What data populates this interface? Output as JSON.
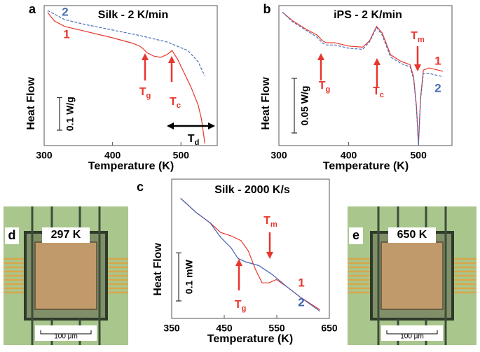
{
  "chart_data": [
    {
      "type": "line",
      "panel": "a",
      "title": "Silk - 2 K/min",
      "xlabel": "Temperature (K)",
      "ylabel": "Heat Flow",
      "xlim": [
        300,
        553
      ],
      "xticks": [
        300,
        400,
        500
      ],
      "ylim": [
        0,
        0.43
      ],
      "scale_bar": {
        "value": 0.1,
        "label": "0.1 W/g"
      },
      "series": [
        {
          "name": "1",
          "color": "#e8362d",
          "dashed": false,
          "x": [
            305,
            315,
            330,
            360,
            400,
            430,
            440,
            445,
            450,
            460,
            470,
            480,
            487,
            495,
            505,
            515,
            525,
            530,
            535
          ],
          "values": [
            0.409,
            0.383,
            0.366,
            0.351,
            0.331,
            0.314,
            0.305,
            0.297,
            0.286,
            0.275,
            0.271,
            0.28,
            0.292,
            0.265,
            0.222,
            0.178,
            0.125,
            0.082,
            0.006
          ]
        },
        {
          "name": "2",
          "color": "#4a6fb5",
          "dashed": true,
          "x": [
            305,
            330,
            360,
            400,
            440,
            480,
            510,
            525,
            532,
            535
          ],
          "values": [
            0.415,
            0.387,
            0.372,
            0.355,
            0.338,
            0.318,
            0.292,
            0.258,
            0.226,
            0.215
          ]
        }
      ],
      "annotations": [
        {
          "text": "T",
          "subscript": "g"
        },
        {
          "text": "T",
          "subscript": "c"
        },
        {
          "text": "T",
          "subscript": "d"
        }
      ]
    },
    {
      "type": "line",
      "panel": "b",
      "title": "iPS - 2 K/min",
      "xlabel": "Temperature (K)",
      "ylabel": "Heat Flow",
      "xlim": [
        300,
        548
      ],
      "xticks": [
        300,
        400,
        500
      ],
      "ylim": [
        0,
        0.128
      ],
      "scale_bar": {
        "value": 0.05,
        "label": "0.05 W/g"
      },
      "series": [
        {
          "name": "1",
          "color": "#e8362d",
          "dashed": false,
          "x": [
            305,
            320,
            340,
            355,
            362,
            368,
            380,
            400,
            420,
            430,
            440,
            448,
            460,
            475,
            488,
            493,
            497,
            500,
            503,
            507,
            515,
            535
          ],
          "values": [
            0.122,
            0.114,
            0.106,
            0.101,
            0.096,
            0.094,
            0.094,
            0.091,
            0.09,
            0.096,
            0.109,
            0.103,
            0.083,
            0.077,
            0.074,
            0.063,
            0.037,
            0.002,
            0.044,
            0.069,
            0.071,
            0.068
          ]
        },
        {
          "name": "2",
          "color": "#4a6fb5",
          "dashed": true,
          "x": [
            305,
            320,
            340,
            355,
            362,
            368,
            380,
            400,
            420,
            430,
            440,
            448,
            460,
            475,
            488,
            493,
            497,
            500,
            503,
            507,
            515,
            535
          ],
          "values": [
            0.122,
            0.113,
            0.105,
            0.099,
            0.094,
            0.092,
            0.092,
            0.089,
            0.088,
            0.095,
            0.108,
            0.101,
            0.081,
            0.075,
            0.072,
            0.061,
            0.035,
            0.0,
            0.042,
            0.066,
            0.066,
            0.063
          ]
        }
      ],
      "annotations": [
        {
          "text": "T",
          "subscript": "g"
        },
        {
          "text": "T",
          "subscript": "c"
        },
        {
          "text": "T",
          "subscript": "m"
        }
      ]
    },
    {
      "type": "line",
      "panel": "c",
      "title": "Silk - 2000 K/s",
      "xlabel": "Temperature (K)",
      "ylabel": "Heat Flow",
      "xlim": [
        350,
        650
      ],
      "xticks": [
        350,
        450,
        550,
        650
      ],
      "ylim": [
        0,
        0.29
      ],
      "scale_bar": {
        "value": 0.1,
        "label": "0.1 mW"
      },
      "series": [
        {
          "name": "1",
          "color": "#e8362d",
          "dashed": false,
          "x": [
            367,
            396,
            423,
            443,
            463,
            482,
            496,
            509,
            522,
            535,
            549,
            569,
            595,
            632
          ],
          "values": [
            0.25,
            0.221,
            0.199,
            0.179,
            0.172,
            0.162,
            0.14,
            0.103,
            0.074,
            0.074,
            0.081,
            0.066,
            0.044,
            0.018
          ]
        },
        {
          "name": "2",
          "color": "#3f5fb0",
          "dashed": false,
          "x": [
            367,
            396,
            423,
            443,
            463,
            476,
            490,
            516,
            542,
            569,
            595,
            632
          ],
          "values": [
            0.25,
            0.221,
            0.199,
            0.169,
            0.147,
            0.125,
            0.118,
            0.11,
            0.091,
            0.066,
            0.044,
            0.015
          ]
        }
      ],
      "annotations": [
        {
          "text": "T",
          "subscript": "g"
        },
        {
          "text": "T",
          "subscript": "m"
        }
      ]
    }
  ],
  "images": [
    {
      "panel": "d",
      "label": "297 K",
      "scale": "100 μm"
    },
    {
      "panel": "e",
      "label": "650 K",
      "scale": "100 μm"
    }
  ]
}
